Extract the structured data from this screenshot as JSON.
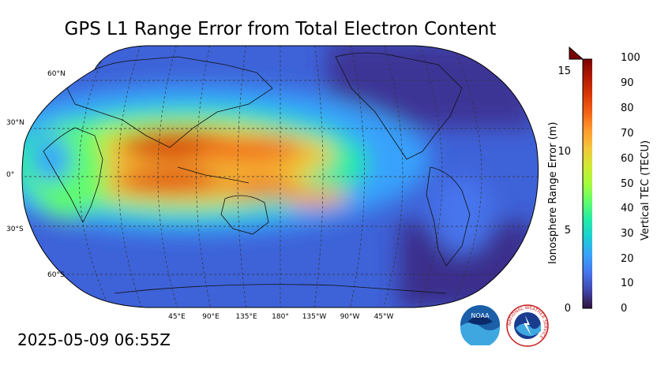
{
  "title": "GPS L1 Range Error from Total Electron Content",
  "timestamp": "2025-05-09 06:55Z",
  "lat_labels": [
    "60°N",
    "30°N",
    "0°",
    "30°S",
    "60°S"
  ],
  "lon_labels": [
    "45°E",
    "90°E",
    "135°E",
    "180°",
    "135°W",
    "90°W",
    "45°W"
  ],
  "colorbar": {
    "left_label": "Ionosphere Range Error (m)",
    "right_label": "Vertical TEC (TECU)",
    "left_ticks": [
      "0",
      "5",
      "10",
      "15"
    ],
    "right_ticks": [
      "0",
      "10",
      "20",
      "30",
      "40",
      "50",
      "60",
      "70",
      "80",
      "90",
      "100"
    ],
    "colormap": [
      "#30123b",
      "#4145ab",
      "#4675ed",
      "#39a2fc",
      "#1bcfd4",
      "#24eca6",
      "#61fc6c",
      "#a4fc3b",
      "#d1e834",
      "#f3c63a",
      "#fe9b2d",
      "#f36315",
      "#d93806",
      "#b11901",
      "#7a0402"
    ]
  },
  "logos": {
    "noaa_text": "NOAA",
    "nws_text": "NATIONAL WEATHER SERVICE"
  }
}
